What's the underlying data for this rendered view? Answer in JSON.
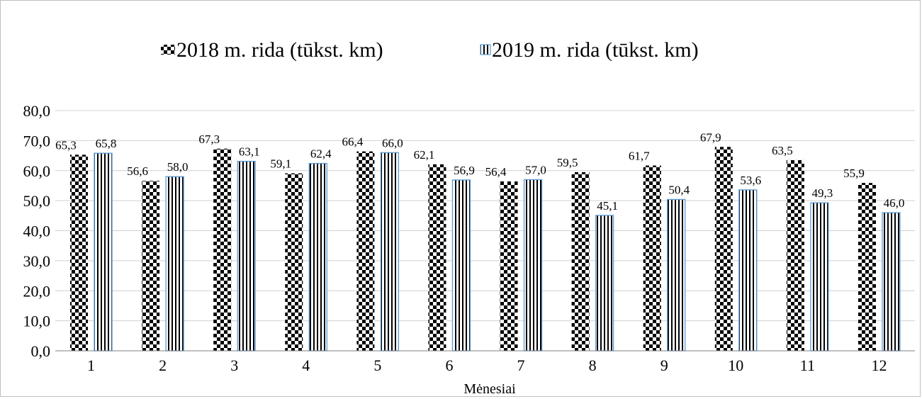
{
  "chart_data": {
    "type": "bar",
    "title": "",
    "xlabel": "Mėnesiai",
    "ylabel": "",
    "ylim": [
      0,
      80
    ],
    "yticks": [
      "0,0",
      "10,0",
      "20,0",
      "30,0",
      "40,0",
      "50,0",
      "60,0",
      "70,0",
      "80,0"
    ],
    "grid": true,
    "legend_position": "top",
    "categories": [
      "1",
      "2",
      "3",
      "4",
      "5",
      "6",
      "7",
      "8",
      "9",
      "10",
      "11",
      "12"
    ],
    "series": [
      {
        "name": "2018 m. rida (tūkst. km)",
        "values": [
          65.3,
          56.6,
          67.3,
          59.1,
          66.4,
          62.1,
          56.4,
          59.5,
          61.7,
          67.9,
          63.5,
          55.9
        ],
        "labels": [
          "65,3",
          "56,6",
          "67,3",
          "59,1",
          "66,4",
          "62,1",
          "56,4",
          "59,5",
          "61,7",
          "67,9",
          "63,5",
          "55,9"
        ],
        "pattern": "checkerboard",
        "color": "#000000"
      },
      {
        "name": "2019 m. rida (tūkst. km)",
        "values": [
          65.8,
          58.0,
          63.1,
          62.4,
          66.0,
          56.9,
          57.0,
          45.1,
          50.4,
          53.6,
          49.3,
          46.0
        ],
        "labels": [
          "65,8",
          "58,0",
          "63,1",
          "62,4",
          "66,0",
          "56,9",
          "57,0",
          "45,1",
          "50,4",
          "53,6",
          "49,3",
          "46,0"
        ],
        "pattern": "vertical-stripes",
        "color": "#000000",
        "border_color": "#5b9bd5"
      }
    ]
  }
}
